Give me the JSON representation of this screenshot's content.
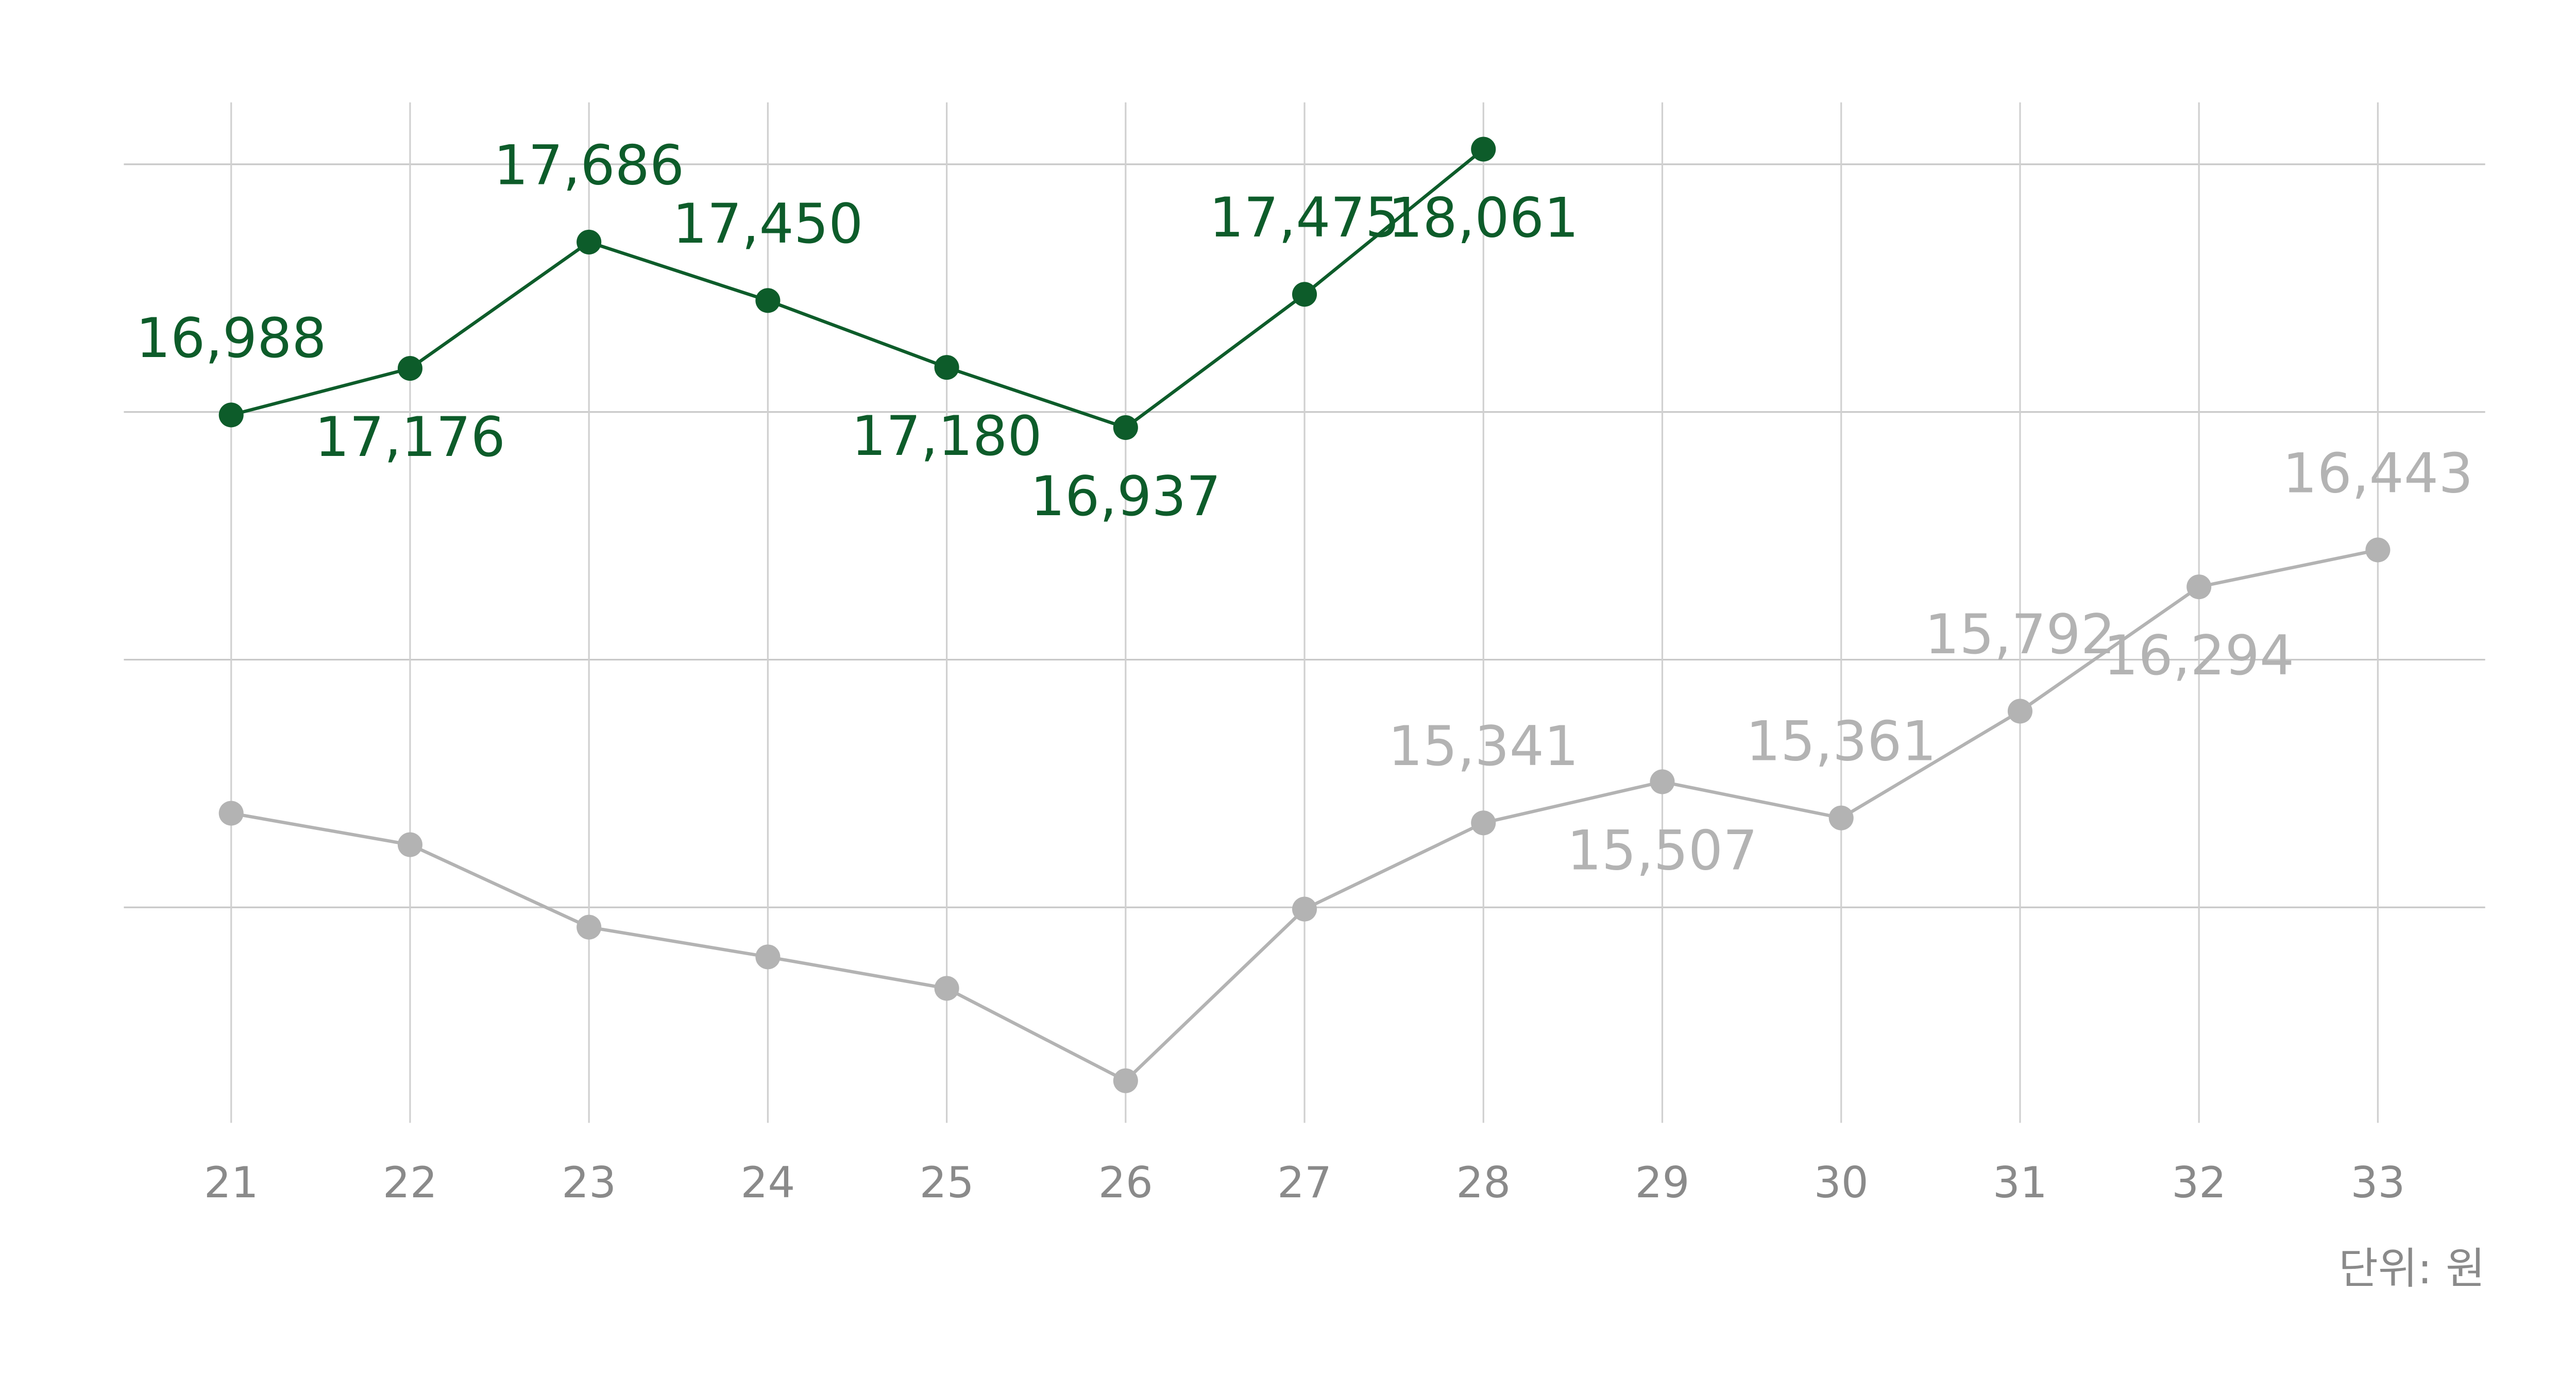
{
  "chart_data": {
    "type": "line",
    "categories": [
      "21",
      "22",
      "23",
      "24",
      "25",
      "26",
      "27",
      "28",
      "29",
      "30",
      "31",
      "32",
      "33"
    ],
    "series": [
      {
        "color": "#0d5c2a",
        "values": [
          16988,
          17176,
          17686,
          17450,
          17180,
          16937,
          17475,
          18061,
          null,
          null,
          null,
          null,
          null
        ],
        "value_labels": [
          "16,988",
          "17,176",
          "17,686",
          "17,450",
          "17,180",
          "16,937",
          "17,475",
          "18,061",
          null,
          null,
          null,
          null,
          null
        ]
      },
      {
        "color": "#b3b3b3",
        "values": [
          15380,
          15253,
          14920,
          14800,
          14673,
          14300,
          14993,
          15341,
          15507,
          15361,
          15792,
          16294,
          16443
        ],
        "value_labels": [
          null,
          null,
          null,
          null,
          null,
          null,
          null,
          "15,341",
          "15,507",
          "15,361",
          "15,792",
          "16,294",
          "16,443"
        ]
      }
    ],
    "ylim": [
      14130,
      18250
    ],
    "yticks": [
      15000,
      16000,
      17000,
      18000
    ],
    "grid": true,
    "unit_note": "단위: 원"
  }
}
